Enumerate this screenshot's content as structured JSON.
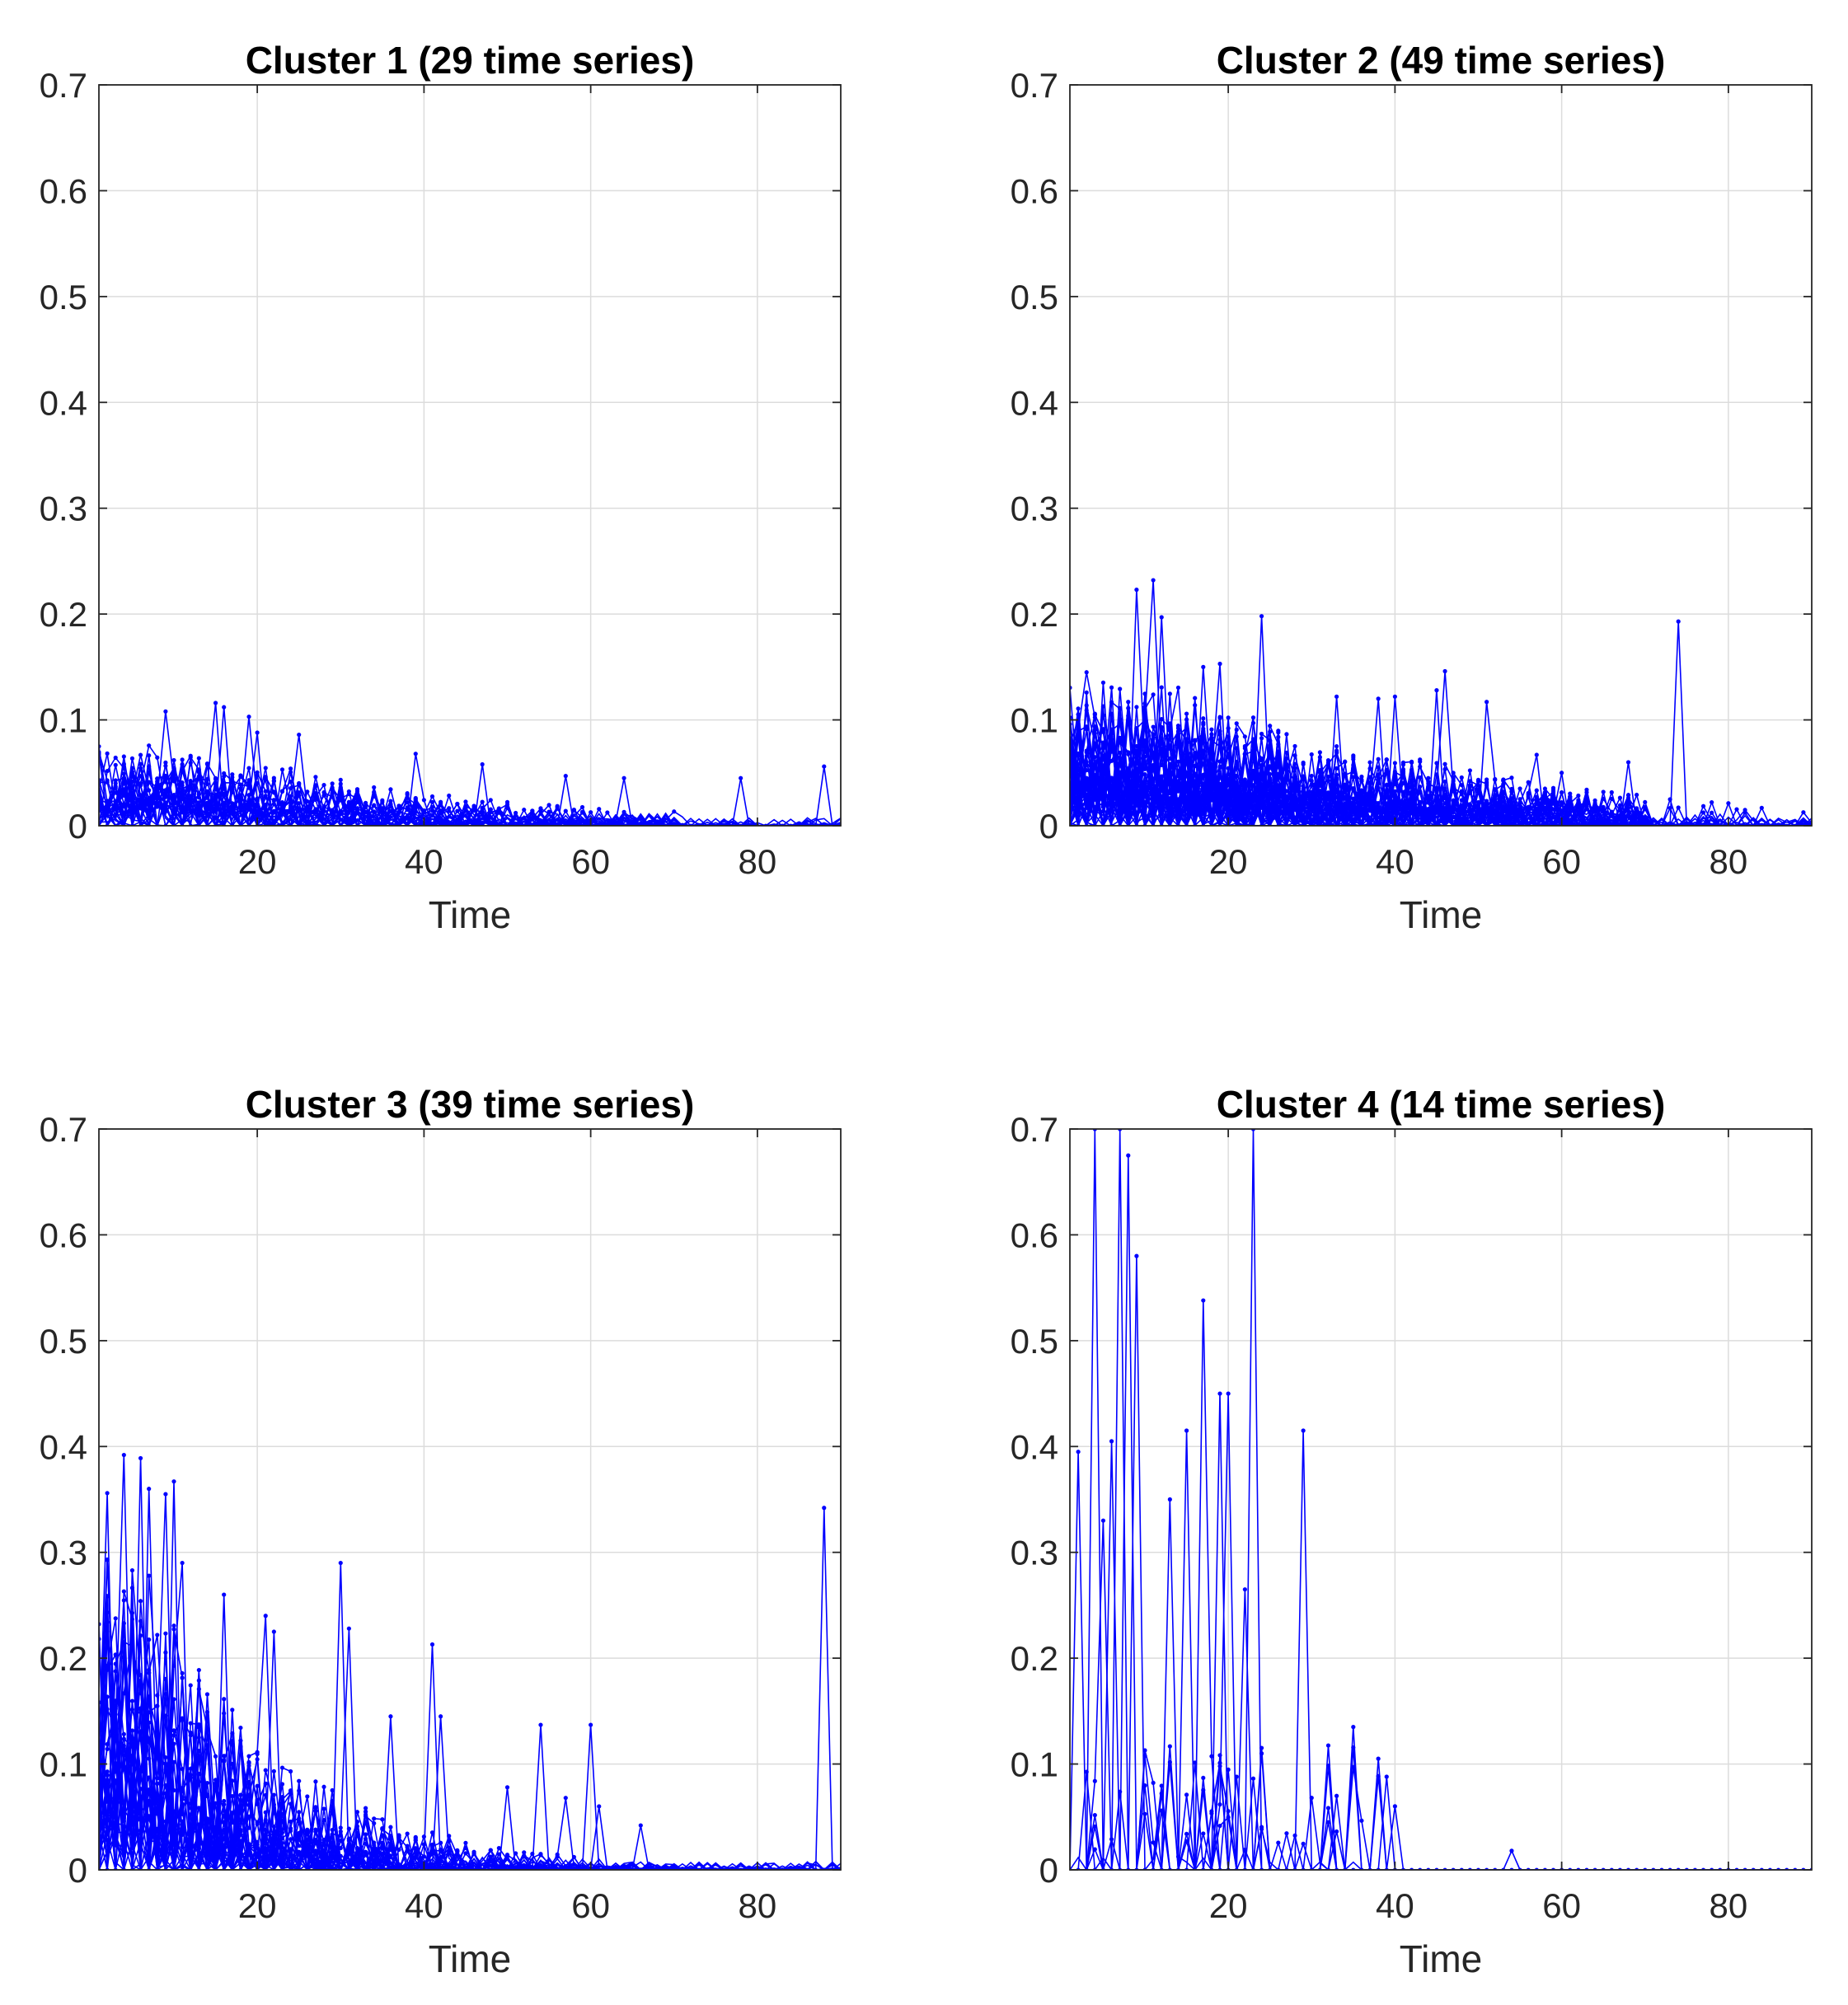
{
  "figure": {
    "line_color": "#0000ff",
    "grid_color": "#dcdcdc",
    "axis_color": "#262626"
  },
  "chart_data": [
    {
      "type": "line",
      "title": "Cluster 1 (29 time series)",
      "xlabel": "Time",
      "ylabel": "",
      "xlim": [
        1,
        90
      ],
      "ylim": [
        0,
        0.7
      ],
      "xticks": [
        20,
        40,
        60,
        80
      ],
      "yticks": [
        0,
        0.1,
        0.2,
        0.3,
        0.4,
        0.5,
        0.6,
        0.7
      ],
      "grid": true,
      "series_count": 29,
      "noise": {
        "base": 0.025,
        "amp": 0.055,
        "peak_time": 12,
        "decay": 0.03
      },
      "highlighted_peaks": [
        [
          1,
          0.075
        ],
        [
          9,
          0.108
        ],
        [
          15,
          0.116
        ],
        [
          16,
          0.112
        ],
        [
          19,
          0.103
        ],
        [
          20,
          0.088
        ],
        [
          25,
          0.086
        ],
        [
          39,
          0.068
        ],
        [
          47,
          0.058
        ],
        [
          57,
          0.047
        ],
        [
          64,
          0.045
        ],
        [
          78,
          0.045
        ],
        [
          88,
          0.056
        ]
      ]
    },
    {
      "type": "line",
      "title": "Cluster 2 (49 time series)",
      "xlabel": "Time",
      "ylabel": "",
      "xlim": [
        1,
        90
      ],
      "ylim": [
        0,
        0.7
      ],
      "xticks": [
        20,
        40,
        60,
        80
      ],
      "yticks": [
        0,
        0.1,
        0.2,
        0.3,
        0.4,
        0.5,
        0.6,
        0.7
      ],
      "grid": true,
      "series_count": 49,
      "noise": {
        "base": 0.04,
        "amp": 0.1,
        "peak_time": 12,
        "decay": 0.025
      },
      "highlighted_peaks": [
        [
          3,
          0.145
        ],
        [
          9,
          0.223
        ],
        [
          11,
          0.232
        ],
        [
          12,
          0.197
        ],
        [
          17,
          0.15
        ],
        [
          19,
          0.153
        ],
        [
          24,
          0.198
        ],
        [
          33,
          0.122
        ],
        [
          38,
          0.12
        ],
        [
          40,
          0.122
        ],
        [
          45,
          0.128
        ],
        [
          46,
          0.146
        ],
        [
          51,
          0.117
        ],
        [
          57,
          0.067
        ],
        [
          60,
          0.05
        ],
        [
          68,
          0.06
        ],
        [
          74,
          0.193
        ]
      ]
    },
    {
      "type": "line",
      "title": "Cluster 3 (39 time series)",
      "xlabel": "Time",
      "ylabel": "",
      "xlim": [
        1,
        90
      ],
      "ylim": [
        0,
        0.7
      ],
      "xticks": [
        20,
        40,
        60,
        80
      ],
      "yticks": [
        0,
        0.1,
        0.2,
        0.3,
        0.4,
        0.5,
        0.6,
        0.7
      ],
      "grid": true,
      "series_count": 39,
      "noise": {
        "base": 0.05,
        "amp": 0.26,
        "peak_time": 6,
        "decay": 0.06
      },
      "highlighted_peaks": [
        [
          2,
          0.356
        ],
        [
          4,
          0.392
        ],
        [
          6,
          0.389
        ],
        [
          7,
          0.36
        ],
        [
          9,
          0.355
        ],
        [
          10,
          0.367
        ],
        [
          11,
          0.29
        ],
        [
          16,
          0.26
        ],
        [
          21,
          0.24
        ],
        [
          22,
          0.225
        ],
        [
          30,
          0.29
        ],
        [
          31,
          0.228
        ],
        [
          36,
          0.145
        ],
        [
          41,
          0.213
        ],
        [
          42,
          0.145
        ],
        [
          50,
          0.078
        ],
        [
          54,
          0.137
        ],
        [
          57,
          0.068
        ],
        [
          60,
          0.137
        ],
        [
          61,
          0.06
        ],
        [
          66,
          0.042
        ],
        [
          88,
          0.342
        ]
      ]
    },
    {
      "type": "line",
      "title": "Cluster 4 (14 time series)",
      "xlabel": "Time",
      "ylabel": "",
      "xlim": [
        1,
        90
      ],
      "ylim": [
        0,
        0.7
      ],
      "xticks": [
        20,
        40,
        60,
        80
      ],
      "yticks": [
        0,
        0.1,
        0.2,
        0.3,
        0.4,
        0.5,
        0.6,
        0.7
      ],
      "grid": true,
      "series_count": 14,
      "noise": {
        "base": 0.0,
        "amp": 0.0,
        "peak_time": 10,
        "decay": 0.05
      },
      "highlighted_peaks": [
        [
          2,
          0.395
        ],
        [
          4,
          0.7
        ],
        [
          5,
          0.33
        ],
        [
          6,
          0.405
        ],
        [
          7,
          0.7
        ],
        [
          8,
          0.675
        ],
        [
          9,
          0.58
        ],
        [
          13,
          0.35
        ],
        [
          15,
          0.415
        ],
        [
          17,
          0.538
        ],
        [
          19,
          0.45
        ],
        [
          20,
          0.45
        ],
        [
          22,
          0.265
        ],
        [
          23,
          0.7
        ],
        [
          24,
          0.11
        ],
        [
          29,
          0.415
        ],
        [
          35,
          0.135
        ],
        [
          38,
          0.105
        ],
        [
          39,
          0.088
        ],
        [
          54,
          0.018
        ]
      ]
    }
  ]
}
